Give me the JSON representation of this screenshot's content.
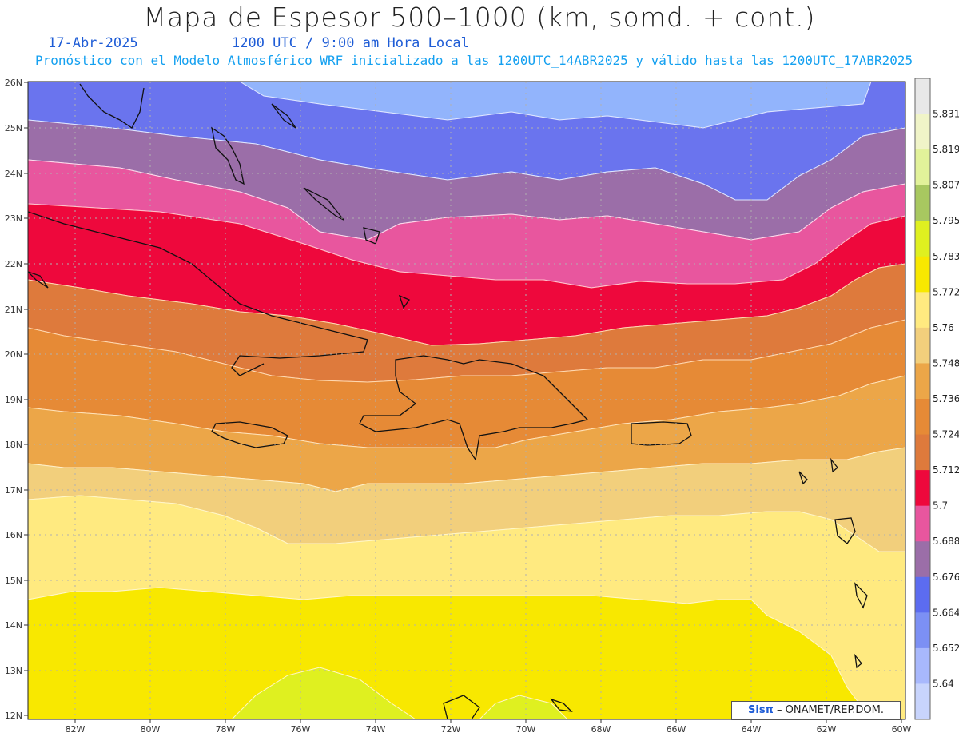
{
  "header": {
    "title": "Mapa de Espesor 500–1000 (km, somd. + cont.)",
    "date": "17-Abr-2025",
    "time": "1200 UTC / 9:00 am Hora Local",
    "model_line": "Pronóstico con el Modelo Atmosférico WRF inicializado a las 1200UTC_14ABR2025 y válido hasta las  1200UTC_17ABR2025"
  },
  "axes": {
    "lat_labels": [
      "26N",
      "25N",
      "24N",
      "23N",
      "22N",
      "21N",
      "20N",
      "19N",
      "18N",
      "17N",
      "16N",
      "15N",
      "14N",
      "13N",
      "12N"
    ],
    "lon_labels": [
      "82W",
      "80W",
      "78W",
      "76W",
      "74W",
      "72W",
      "70W",
      "68W",
      "66W",
      "64W",
      "62W",
      "60W"
    ]
  },
  "colorbar": {
    "levels": [
      "5.831",
      "5.819",
      "5.807",
      "5.795",
      "5.783",
      "5.772",
      "5.76",
      "5.748",
      "5.736",
      "5.724",
      "5.712",
      "5.7",
      "5.688",
      "5.676",
      "5.664",
      "5.652",
      "5.64"
    ],
    "colors": [
      "#e8e8e8",
      "#f0f4c8",
      "#e2f29a",
      "#a8c860",
      "#dff020",
      "#f8e800",
      "#ffea80",
      "#f2cf7c",
      "#eca648",
      "#e68a36",
      "#de7a3c",
      "#ee083c",
      "#e8569e",
      "#9b6ea8",
      "#5c6cf0",
      "#7c90f4",
      "#a8b8fc",
      "#c8d4fc"
    ]
  },
  "footer": {
    "brand": "Sisπ",
    "credit": " – ONAMET/REP.DOM."
  }
}
